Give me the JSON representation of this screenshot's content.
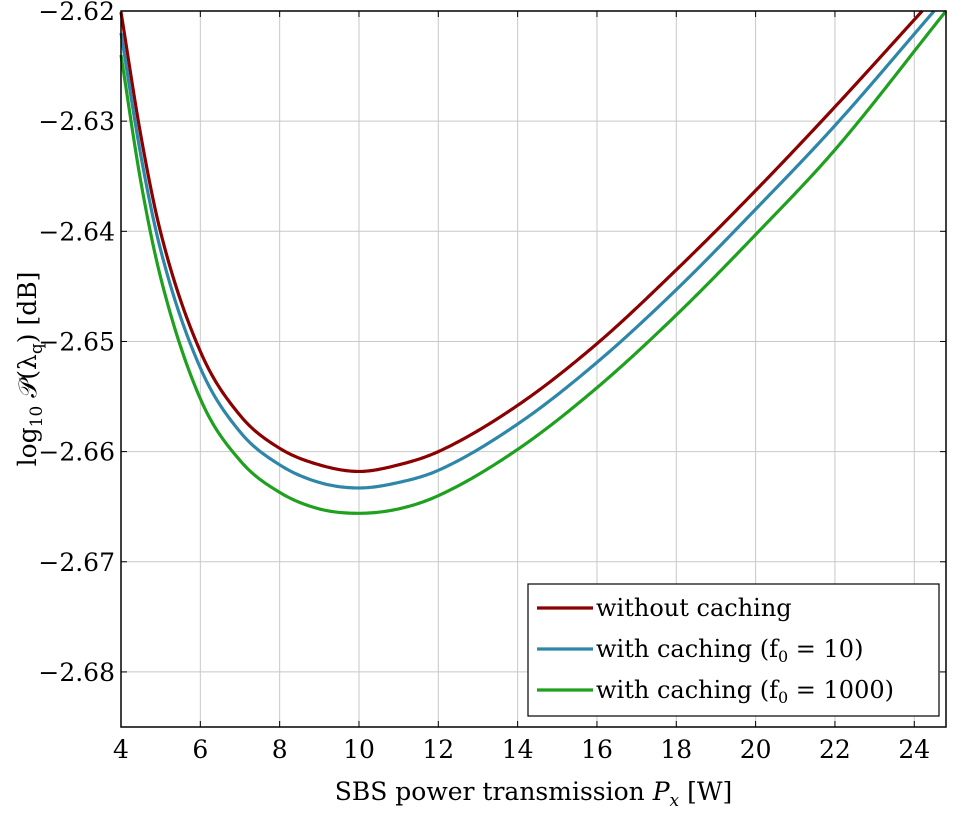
{
  "chart_data": {
    "type": "line",
    "title": "",
    "xlabel": "SBS power transmission P_x [W]",
    "ylabel": "log_10 𝒫(λ_q) [dB]",
    "xlim": [
      4,
      24.8
    ],
    "ylim": [
      -2.685,
      -2.62
    ],
    "x_ticks": [
      4,
      6,
      8,
      10,
      12,
      14,
      16,
      18,
      20,
      22,
      24
    ],
    "x_tick_labels": [
      "4",
      "6",
      "8",
      "10",
      "12",
      "14",
      "16",
      "18",
      "20",
      "22",
      "24"
    ],
    "y_ticks": [
      -2.62,
      -2.63,
      -2.64,
      -2.65,
      -2.66,
      -2.67,
      -2.68
    ],
    "y_tick_labels": [
      "−2.62",
      "−2.63",
      "−2.64",
      "−2.65",
      "−2.66",
      "−2.67",
      "−2.68"
    ],
    "grid": true,
    "legend_position": "bottom-right",
    "series": [
      {
        "name": "without caching",
        "color": "#8b0000",
        "x": [
          4.0,
          4.5,
          5,
          6,
          7,
          8,
          9,
          10,
          11,
          12,
          14,
          16,
          18,
          20,
          22,
          24.2
        ],
        "y": [
          -2.6201,
          -2.6313,
          -2.6401,
          -2.6509,
          -2.6567,
          -2.6597,
          -2.6612,
          -2.6618,
          -2.6612,
          -2.66,
          -2.6558,
          -2.6502,
          -2.6435,
          -2.6363,
          -2.6287,
          -2.62
        ]
      },
      {
        "name": "with caching (f_0 = 10)",
        "color": "#2e86a8",
        "x": [
          4.0,
          4.5,
          5,
          6,
          7,
          8,
          9,
          10,
          11,
          12,
          14,
          16,
          18,
          20,
          22,
          24.5
        ],
        "y": [
          -2.622,
          -2.6331,
          -2.6417,
          -2.6524,
          -2.6582,
          -2.6612,
          -2.6628,
          -2.6633,
          -2.6628,
          -2.6617,
          -2.6575,
          -2.6519,
          -2.6453,
          -2.638,
          -2.6304,
          -2.62
        ]
      },
      {
        "name": "with caching (f_0 = 1000)",
        "color": "#1fa01f",
        "x": [
          4.0,
          4.5,
          5,
          6,
          7,
          8,
          9,
          10,
          11,
          12,
          14,
          16,
          18,
          20,
          22,
          24.8
        ],
        "y": [
          -2.624,
          -2.6355,
          -2.6442,
          -2.6552,
          -2.6608,
          -2.6637,
          -2.6652,
          -2.6656,
          -2.6652,
          -2.664,
          -2.6598,
          -2.6542,
          -2.6476,
          -2.6403,
          -2.6326,
          -2.62
        ]
      }
    ]
  }
}
